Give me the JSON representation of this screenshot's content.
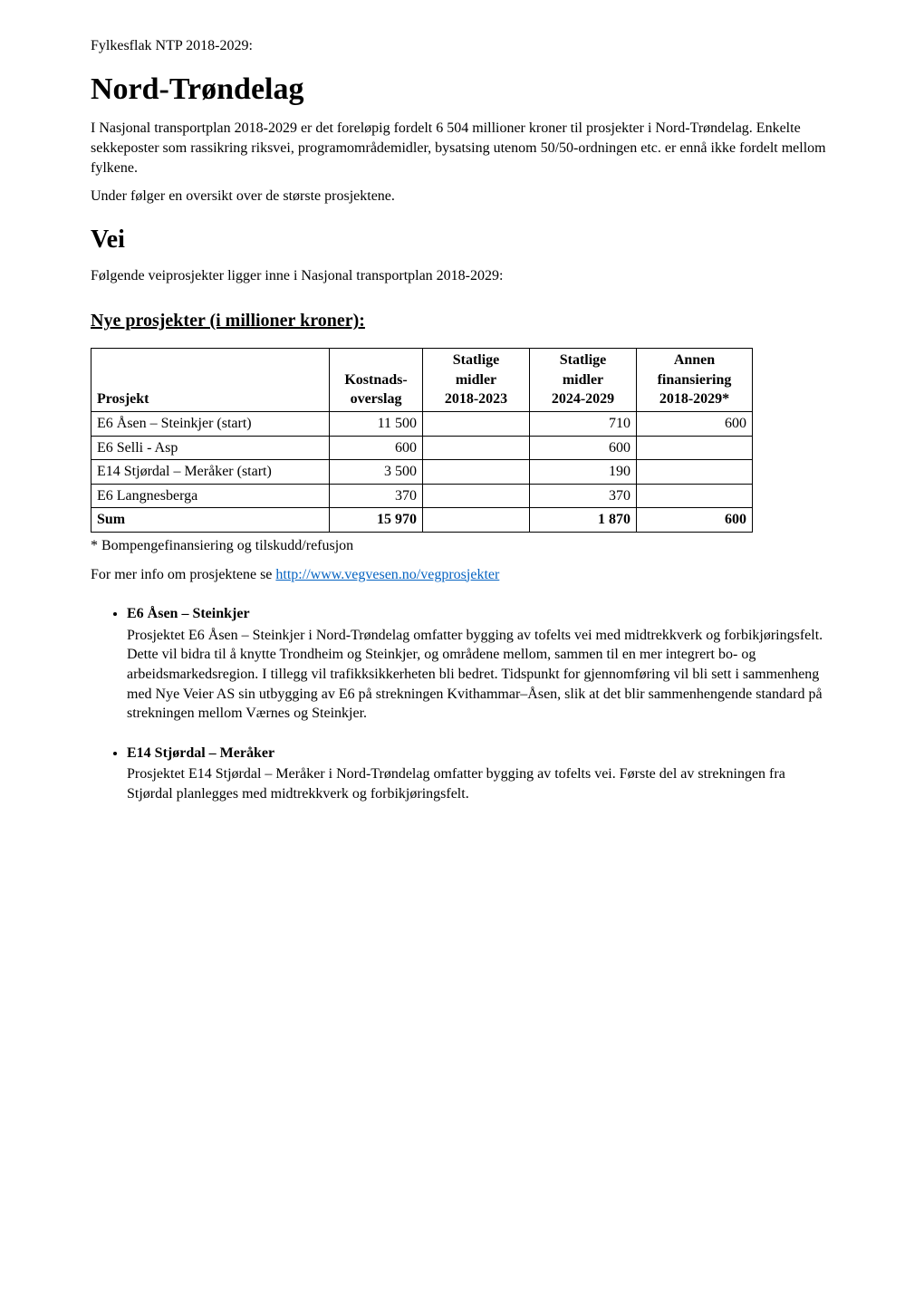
{
  "preTitle": "Fylkesflak NTP 2018-2029:",
  "title": "Nord-Trøndelag",
  "intro1": "I Nasjonal transportplan 2018-2029 er det foreløpig fordelt 6 504 millioner kroner til prosjekter i Nord-Trøndelag. Enkelte sekkeposter som rassikring riksvei, programområdemidler, bysatsing utenom 50/50-ordningen etc. er ennå ikke fordelt mellom fylkene.",
  "intro2": "Under følger en oversikt over de største prosjektene.",
  "section_vei": "Vei",
  "vei_intro": "Følgende veiprosjekter ligger inne i Nasjonal transportplan 2018-2029:",
  "table_heading": "Nye prosjekter (i millioner kroner):",
  "table": {
    "columns": {
      "prosjekt": "Prosjekt",
      "kostnad_l1": "Kostnads-",
      "kostnad_l2": "overslag",
      "stat1_l1": "Statlige",
      "stat1_l2": "midler",
      "stat1_l3": "2018-2023",
      "stat2_l1": "Statlige",
      "stat2_l2": "midler",
      "stat2_l3": "2024-2029",
      "annen_l1": "Annen",
      "annen_l2": "finansiering",
      "annen_l3": "2018-2029*"
    },
    "rows": [
      {
        "prosjekt": "E6 Åsen – Steinkjer (start)",
        "kost": "11 500",
        "s1": "",
        "s2": "710",
        "annen": "600"
      },
      {
        "prosjekt": "E6 Selli - Asp",
        "kost": "600",
        "s1": "",
        "s2": "600",
        "annen": ""
      },
      {
        "prosjekt": "E14 Stjørdal – Meråker (start)",
        "kost": "3 500",
        "s1": "",
        "s2": "190",
        "annen": ""
      },
      {
        "prosjekt": "E6 Langnesberga",
        "kost": "370",
        "s1": "",
        "s2": "370",
        "annen": ""
      }
    ],
    "sum": {
      "prosjekt": "Sum",
      "kost": "15 970",
      "s1": "",
      "s2": "1 870",
      "annen": "600"
    }
  },
  "footnote": "* Bompengefinansiering og tilskudd/refusjon",
  "moreinfo_prefix": "For mer info om prosjektene se ",
  "moreinfo_link": "http://www.vegvesen.no/vegprosjekter",
  "bullets": [
    {
      "head": "E6 Åsen – Steinkjer",
      "body": "Prosjektet E6 Åsen – Steinkjer i Nord-Trøndelag omfatter bygging av tofelts vei med midtrekkverk og forbikjøringsfelt. Dette vil bidra til å knytte Trondheim og Steinkjer, og områdene mellom, sammen til en mer integrert bo- og arbeidsmarkedsregion. I tillegg vil trafikksikkerheten bli bedret. Tidspunkt for gjennomføring vil bli sett i sammenheng med Nye Veier AS sin utbygging av E6 på strekningen Kvithammar–Åsen, slik at det blir sammenhengende standard på strekningen mellom Værnes og Steinkjer."
    },
    {
      "head": "E14 Stjørdal – Meråker",
      "body": "Prosjektet E14 Stjørdal – Meråker i Nord-Trøndelag omfatter bygging av tofelts vei. Første del av strekningen fra Stjørdal planlegges med midtrekkverk og forbikjøringsfelt."
    }
  ]
}
